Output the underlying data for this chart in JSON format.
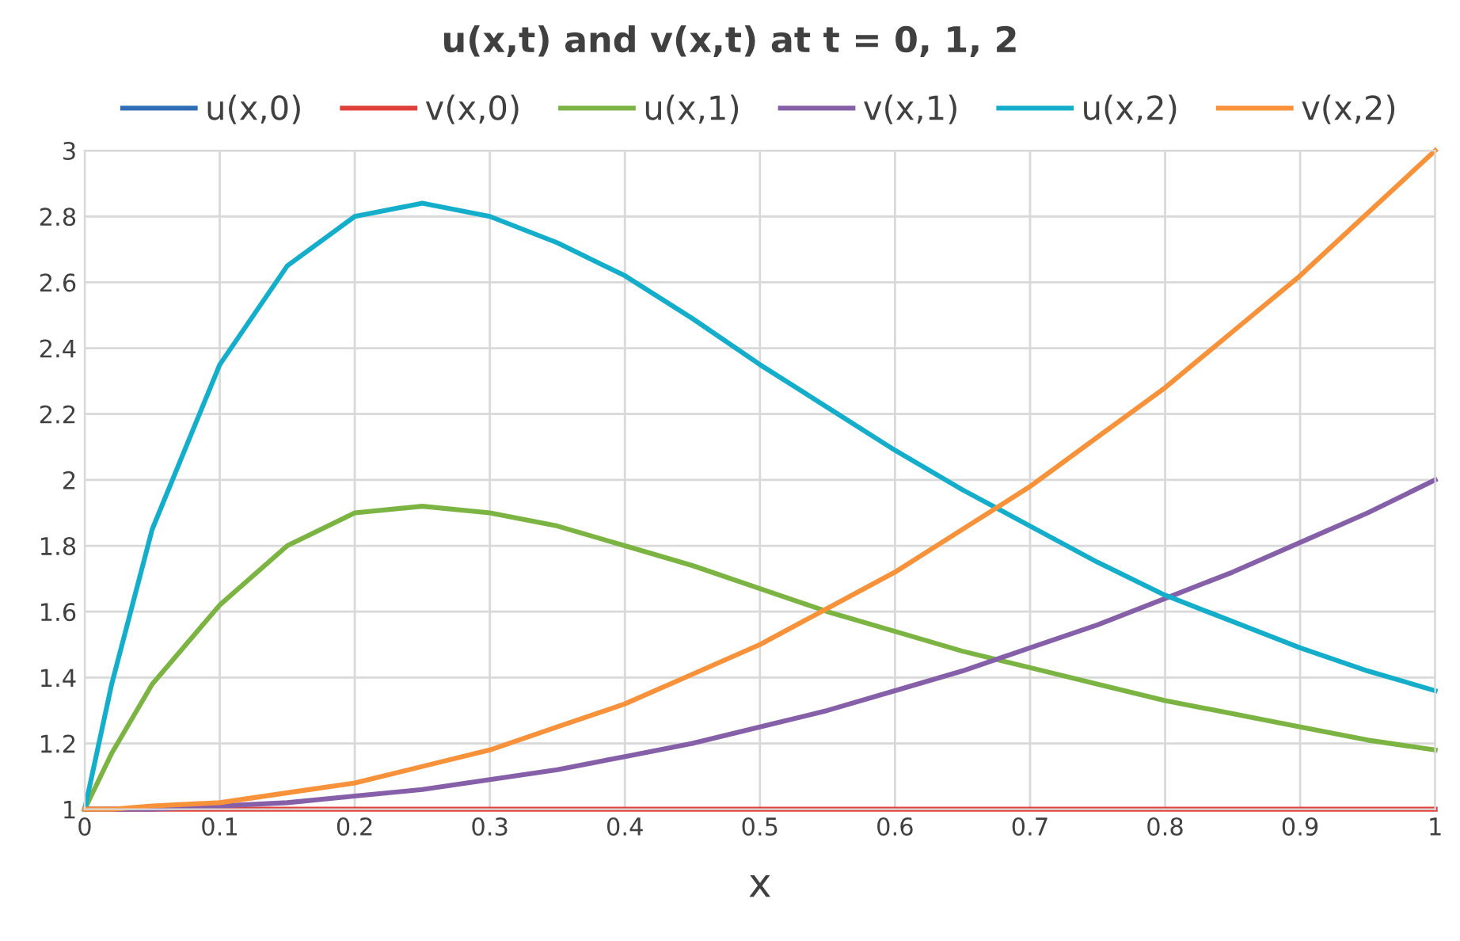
{
  "chart_data": {
    "type": "line",
    "title": "u(x,t) and v(x,t) at t = 0, 1, 2",
    "xlabel": "x",
    "x": [
      0,
      0.02,
      0.05,
      0.1,
      0.15,
      0.2,
      0.25,
      0.3,
      0.35,
      0.4,
      0.45,
      0.5,
      0.55,
      0.6,
      0.65,
      0.7,
      0.75,
      0.8,
      0.85,
      0.9,
      0.95,
      1
    ],
    "series": [
      {
        "name": "u(x,0)",
        "color": "#2f6db5",
        "values": [
          null,
          null,
          null,
          null,
          null,
          null,
          null,
          null,
          null,
          null,
          null,
          null,
          null,
          null,
          null,
          null,
          null,
          null,
          null,
          null,
          null,
          null
        ]
      },
      {
        "name": "v(x,0)",
        "color": "#e0403a",
        "values": [
          1,
          1,
          1,
          1,
          1,
          1,
          1,
          1,
          1,
          1,
          1,
          1,
          1,
          1,
          1,
          1,
          1,
          1,
          1,
          1,
          1,
          1
        ]
      },
      {
        "name": "u(x,1)",
        "color": "#7cb444",
        "values": [
          1,
          1.17,
          1.38,
          1.62,
          1.8,
          1.9,
          1.92,
          1.9,
          1.86,
          1.8,
          1.74,
          1.67,
          1.6,
          1.54,
          1.48,
          1.43,
          1.38,
          1.33,
          1.29,
          1.25,
          1.21,
          1.18
        ]
      },
      {
        "name": "v(x,1)",
        "color": "#8560a8",
        "values": [
          1,
          1,
          1,
          1.01,
          1.02,
          1.04,
          1.06,
          1.09,
          1.12,
          1.16,
          1.2,
          1.25,
          1.3,
          1.36,
          1.42,
          1.49,
          1.56,
          1.64,
          1.72,
          1.81,
          1.9,
          2
        ]
      },
      {
        "name": "u(x,2)",
        "color": "#14aecb",
        "values": [
          1,
          1.38,
          1.85,
          2.35,
          2.65,
          2.8,
          2.84,
          2.8,
          2.72,
          2.62,
          2.49,
          2.35,
          2.22,
          2.09,
          1.97,
          1.86,
          1.75,
          1.65,
          1.57,
          1.49,
          1.42,
          1.36
        ]
      },
      {
        "name": "v(x,2)",
        "color": "#f7923a",
        "values": [
          1,
          1,
          1.01,
          1.02,
          1.05,
          1.08,
          1.13,
          1.18,
          1.25,
          1.32,
          1.41,
          1.5,
          1.61,
          1.72,
          1.85,
          1.98,
          2.13,
          2.28,
          2.45,
          2.62,
          2.81,
          3
        ]
      }
    ],
    "xlim": [
      0,
      1
    ],
    "xticks": [
      0,
      0.1,
      0.2,
      0.3,
      0.4,
      0.5,
      0.6,
      0.7,
      0.8,
      0.9,
      1
    ],
    "ylim": [
      1,
      3
    ],
    "yticks": [
      1,
      1.2,
      1.4,
      1.6,
      1.8,
      2,
      2.2,
      2.4,
      2.6,
      2.8,
      3
    ],
    "grid": true,
    "legend": "top",
    "marker": "none",
    "line_style": "solid"
  }
}
